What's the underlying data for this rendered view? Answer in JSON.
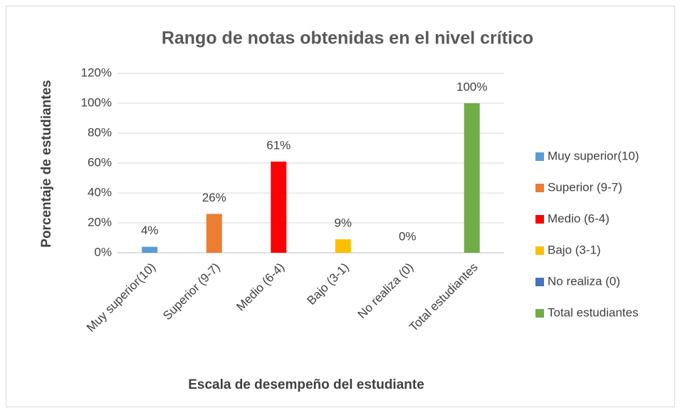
{
  "chart_data": {
    "type": "bar",
    "title": "Rango de notas obtenidas en el nivel crítico",
    "x_label": "Escala de desempeño del estudiante",
    "y_label": "Porcentaje de estudiantes",
    "categories": [
      "Muy superior(10)",
      "Superior (9-7)",
      "Medio (6-4)",
      "Bajo (3-1)",
      "No realiza (0)",
      "Total estudiantes"
    ],
    "series": [
      {
        "name": "Muy superior(10)",
        "color": "#5b9bd5",
        "values": [
          4,
          null,
          null,
          null,
          null,
          null
        ],
        "value_labels": [
          "4%",
          null,
          null,
          null,
          null,
          null
        ]
      },
      {
        "name": "Superior (9-7)",
        "color": "#ed7d31",
        "values": [
          null,
          26,
          null,
          null,
          null,
          null
        ],
        "value_labels": [
          null,
          "26%",
          null,
          null,
          null,
          null
        ]
      },
      {
        "name": "Medio (6-4)",
        "color": "#ff0000",
        "values": [
          null,
          null,
          61,
          null,
          null,
          null
        ],
        "value_labels": [
          null,
          null,
          "61%",
          null,
          null,
          null
        ]
      },
      {
        "name": "Bajo (3-1)",
        "color": "#ffc000",
        "values": [
          null,
          null,
          null,
          9,
          null,
          null
        ],
        "value_labels": [
          null,
          null,
          null,
          "9%",
          null,
          null
        ]
      },
      {
        "name": "No realiza (0)",
        "color": "#4472c4",
        "values": [
          null,
          null,
          null,
          null,
          0,
          null
        ],
        "value_labels": [
          null,
          null,
          null,
          null,
          "0%",
          null
        ]
      },
      {
        "name": "Total estudiantes",
        "color": "#70ad47",
        "values": [
          null,
          null,
          null,
          null,
          null,
          100
        ],
        "value_labels": [
          null,
          null,
          null,
          null,
          null,
          "100%"
        ]
      }
    ],
    "ylim": [
      0,
      120
    ],
    "yticks": [
      {
        "value": 0,
        "label": "0%"
      },
      {
        "value": 20,
        "label": "20%"
      },
      {
        "value": 40,
        "label": "40%"
      },
      {
        "value": 60,
        "label": "60%"
      },
      {
        "value": 80,
        "label": "80%"
      },
      {
        "value": 100,
        "label": "100%"
      },
      {
        "value": 120,
        "label": "120%"
      }
    ],
    "grid": true,
    "legend": "right"
  }
}
